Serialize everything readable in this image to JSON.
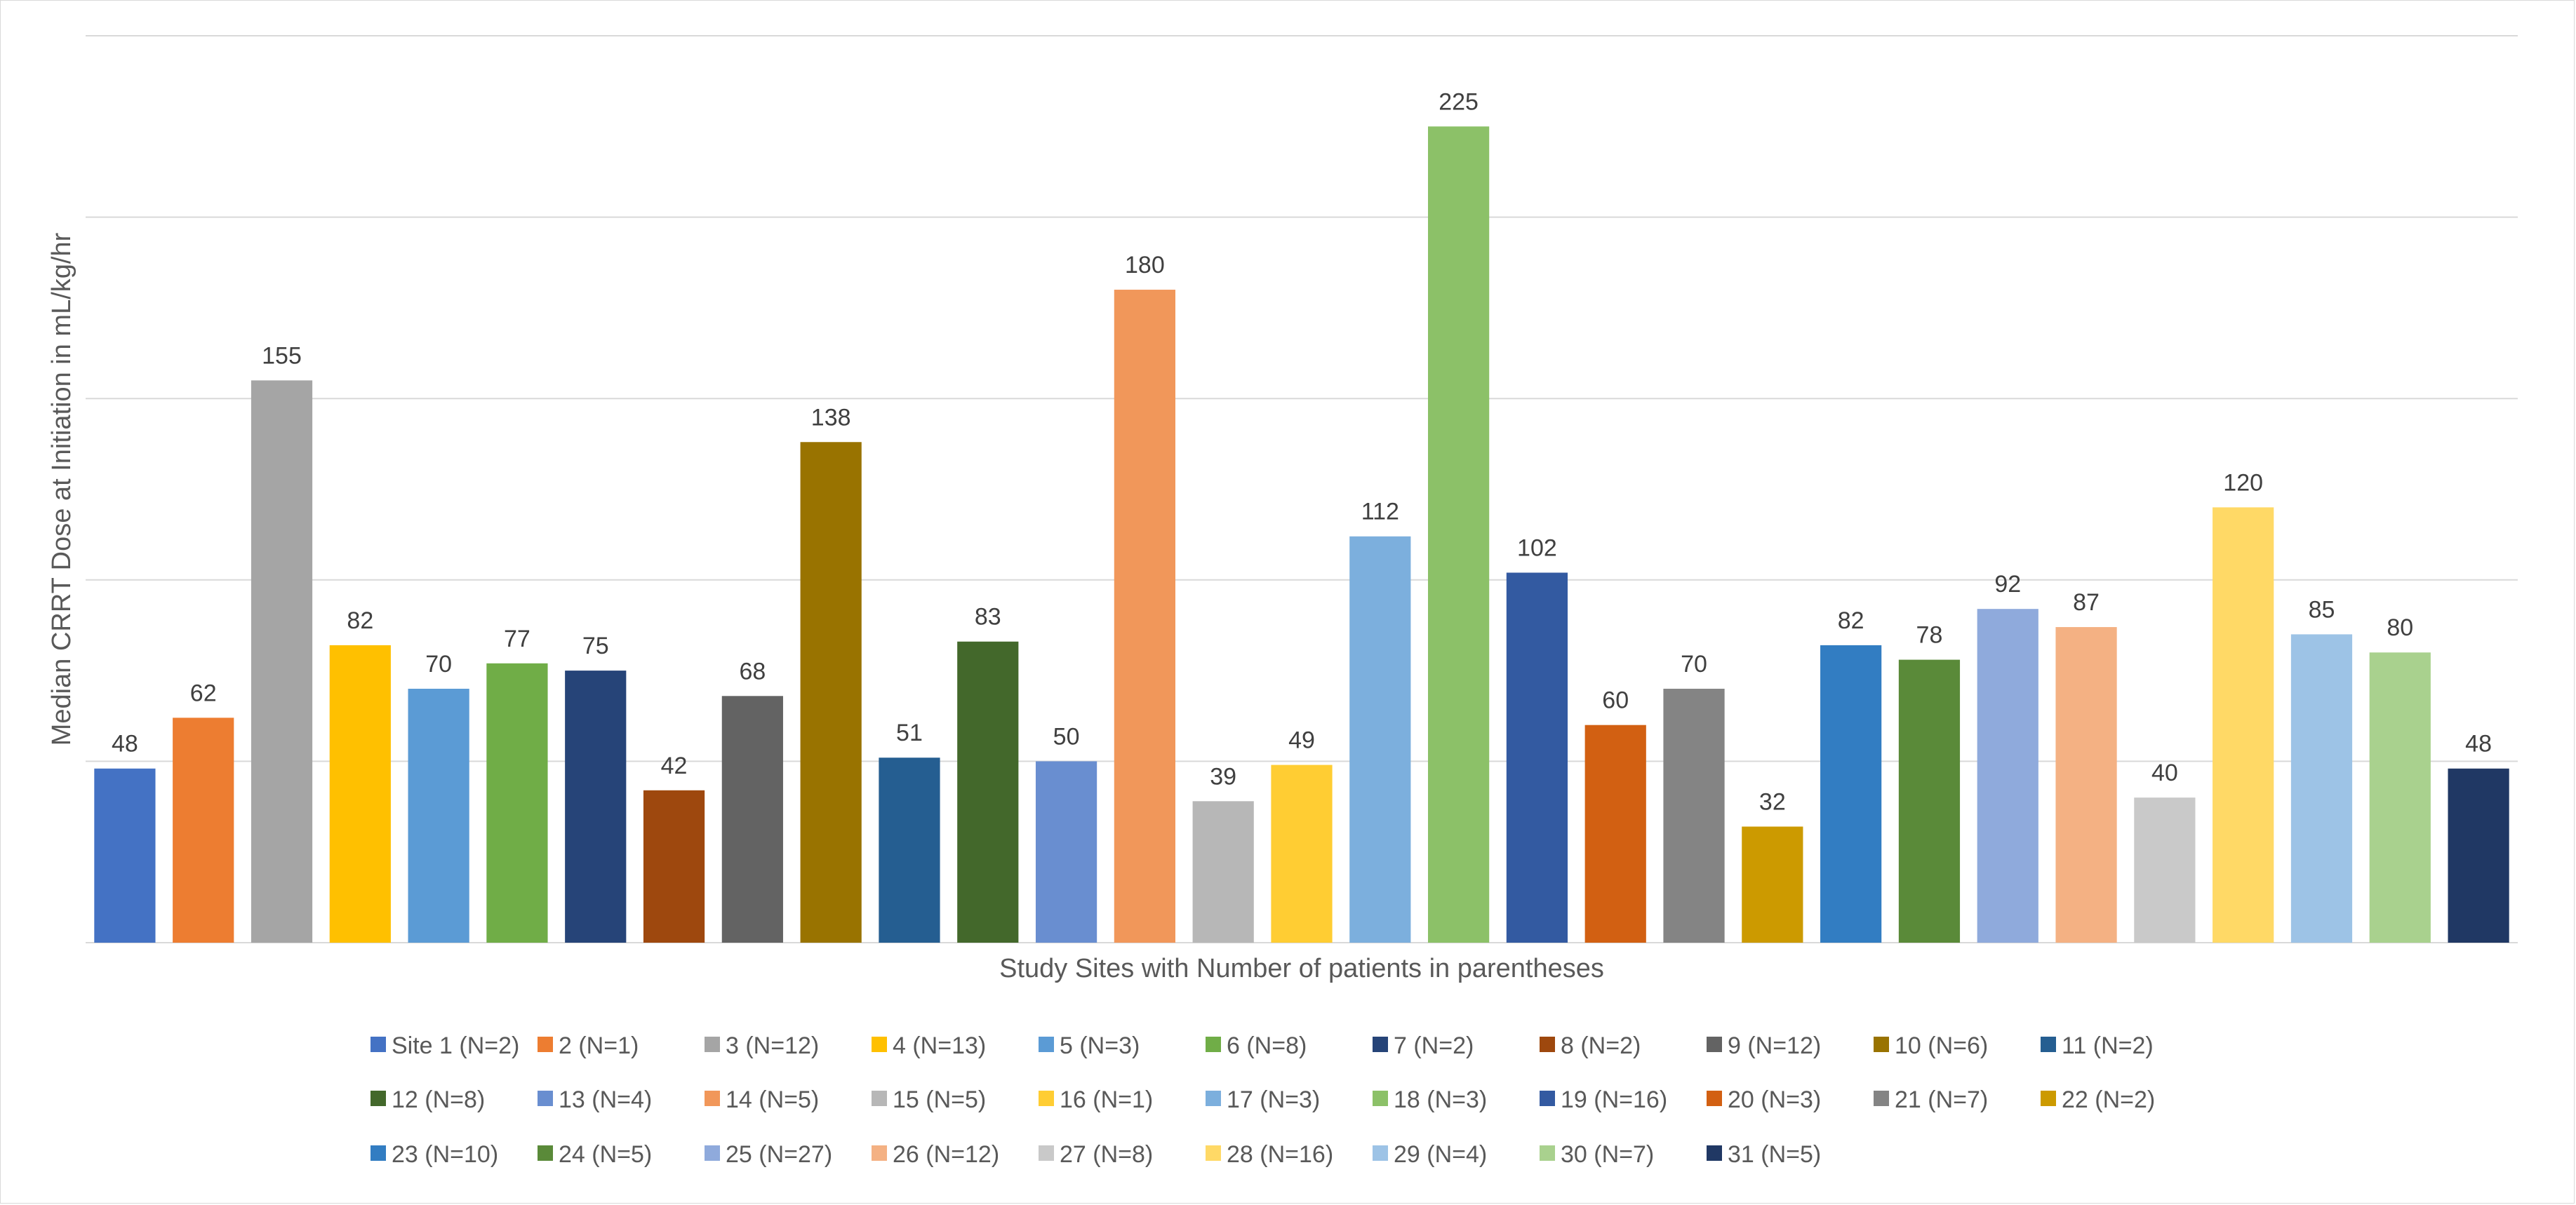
{
  "chart_data": {
    "type": "bar",
    "title": "",
    "xlabel": "Study Sites with Number of patients in parentheses",
    "ylabel": "Median CRRT Dose at Initiation in mL/kg/hr",
    "ylim": [
      0,
      250
    ],
    "grid": true,
    "gridline_step": 50,
    "legend_position": "bottom",
    "categories": [
      "Site 1 (N=2)",
      "2 (N=1)",
      "3 (N=12)",
      "4 (N=13)",
      "5 (N=3)",
      "6 (N=8)",
      "7 (N=2)",
      "8 (N=2)",
      "9 (N=12)",
      "10 (N=6)",
      "11 (N=2)",
      "12 (N=8)",
      "13 (N=4)",
      "14 (N=5)",
      "15 (N=5)",
      "16 (N=1)",
      "17 (N=3)",
      "18 (N=3)",
      "19 (N=16)",
      "20 (N=3)",
      "21 (N=7)",
      "22 (N=2)",
      "23 (N=10)",
      "24 (N=5)",
      "25 (N=27)",
      "26 (N=12)",
      "27 (N=8)",
      "28 (N=16)",
      "29 (N=4)",
      "30 (N=7)",
      "31 (N=5)"
    ],
    "values": [
      48,
      62,
      155,
      82,
      70,
      77,
      75,
      42,
      68,
      138,
      51,
      83,
      50,
      180,
      39,
      49,
      112,
      225,
      102,
      60,
      70,
      32,
      82,
      78,
      92,
      87,
      40,
      120,
      85,
      80,
      48
    ],
    "colors": [
      "#4472C4",
      "#ED7D31",
      "#A5A5A5",
      "#FFC000",
      "#5B9BD5",
      "#70AD47",
      "#264478",
      "#9E480E",
      "#636363",
      "#997300",
      "#255E91",
      "#43682B",
      "#698ED0",
      "#F1975A",
      "#B7B7B7",
      "#FFCD33",
      "#7CAFDD",
      "#8CC168",
      "#335AA1",
      "#D26012",
      "#848484",
      "#CC9A00",
      "#327DC2",
      "#5A8A39",
      "#8FAADC",
      "#F4B183",
      "#C9C9C9",
      "#FFD966",
      "#9DC3E6",
      "#A9D18E",
      "#203864"
    ]
  }
}
